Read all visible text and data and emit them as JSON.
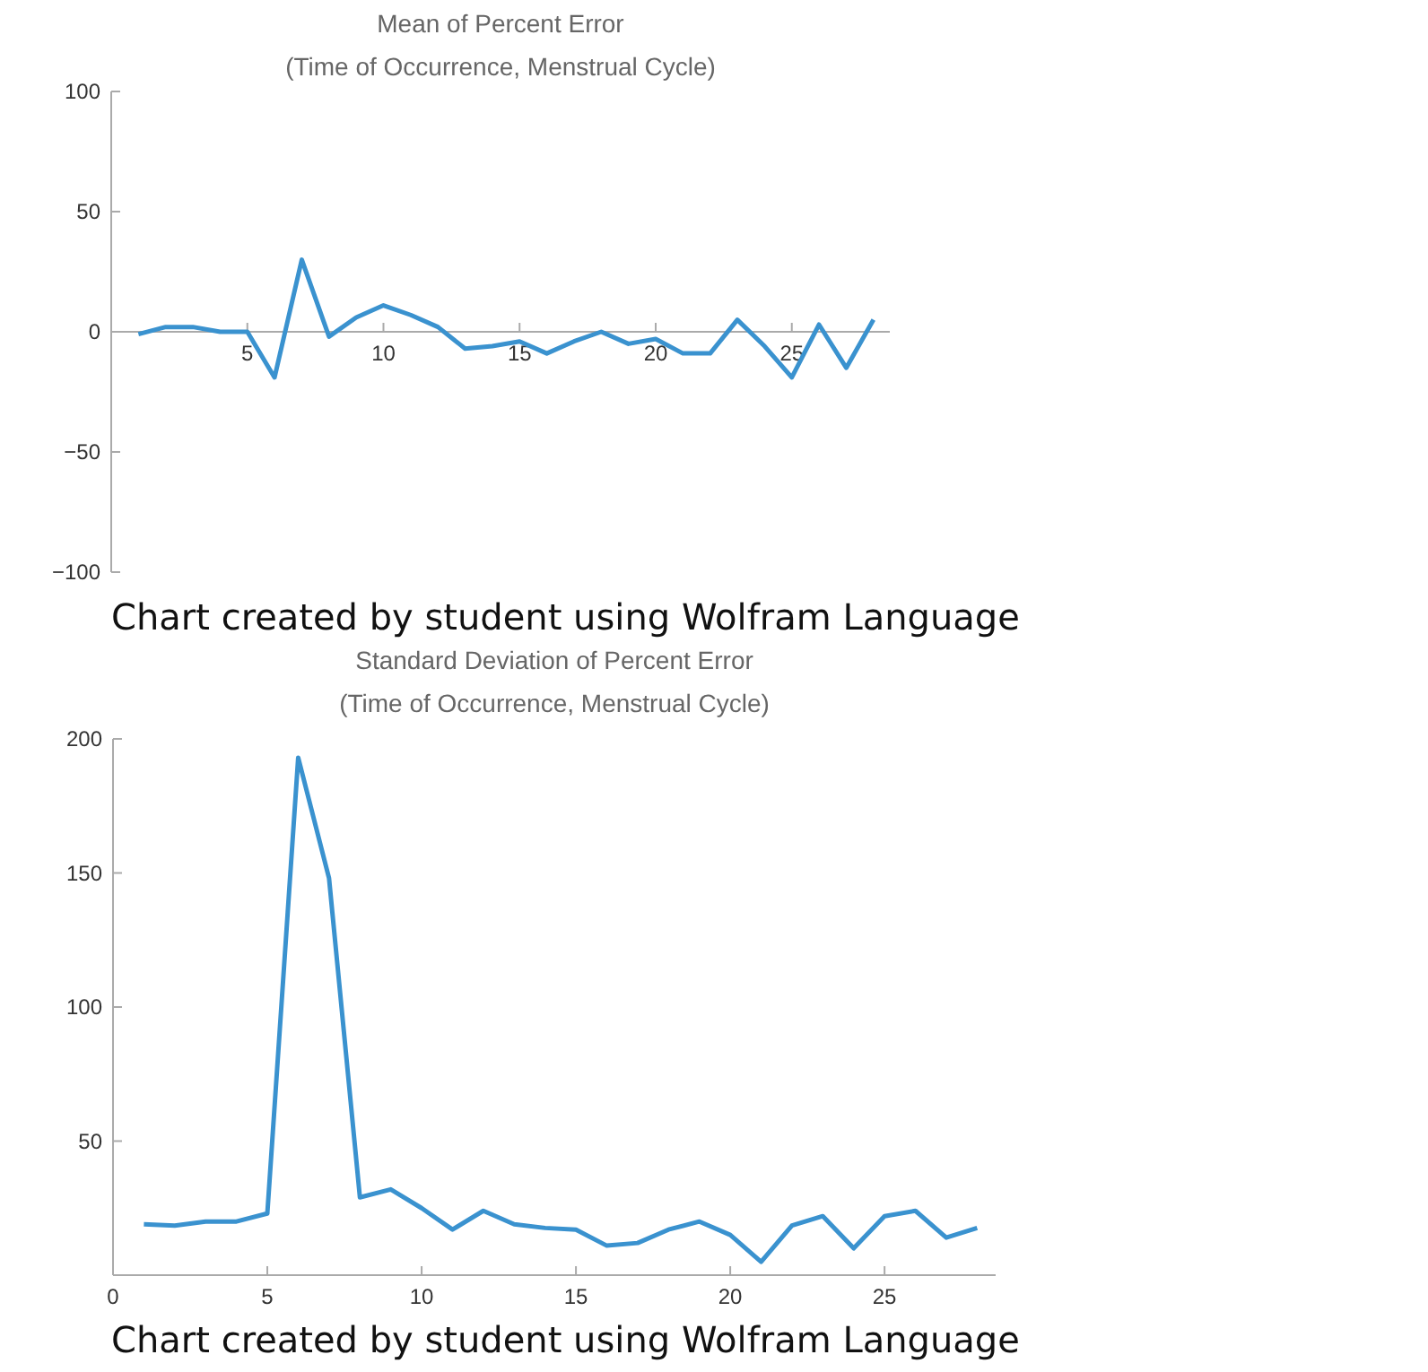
{
  "chart_data": [
    {
      "type": "line",
      "title": "Mean of Percent Error",
      "subtitle": "(Time of Occurrence, Menstrual Cycle)",
      "annotations": [
        "Chart created by student using Wolfram Language"
      ],
      "x": [
        1,
        2,
        3,
        4,
        5,
        6,
        7,
        8,
        9,
        10,
        11,
        12,
        13,
        14,
        15,
        16,
        17,
        18,
        19,
        20,
        21,
        22,
        23,
        24,
        25,
        26,
        27,
        28
      ],
      "series": [
        {
          "color": "#3a92cf",
          "values": [
            -1,
            2,
            2,
            0,
            0,
            -19,
            30,
            -2,
            6,
            11,
            7,
            2,
            -7,
            -6,
            -4,
            -9,
            -4,
            0,
            -5,
            -3,
            -9,
            -9,
            5,
            -6,
            -19,
            3,
            -15,
            5
          ]
        }
      ],
      "xlim": [
        0,
        28.6
      ],
      "xticks": [
        5,
        10,
        15,
        20,
        25
      ],
      "ylim": [
        -100,
        100
      ],
      "yticks": [
        -100,
        -50,
        0,
        50,
        100
      ],
      "grid": false,
      "marker": "none",
      "line_style": "solid"
    },
    {
      "type": "line",
      "title": "Standard Deviation of Percent Error",
      "subtitle": "(Time of Occurrence, Menstrual Cycle)",
      "annotations": [
        "Chart created by student using Wolfram Language"
      ],
      "x": [
        1,
        2,
        3,
        4,
        5,
        6,
        7,
        8,
        9,
        10,
        11,
        12,
        13,
        14,
        15,
        16,
        17,
        18,
        19,
        20,
        21,
        22,
        23,
        24,
        25,
        26,
        27,
        28
      ],
      "series": [
        {
          "color": "#3a92cf",
          "values": [
            19,
            18.5,
            20,
            20,
            23,
            193,
            148,
            29,
            32,
            25,
            17,
            24,
            19,
            17.6,
            17,
            11,
            12,
            17,
            20,
            15,
            5,
            18.5,
            22,
            10,
            22,
            24,
            14,
            17.6
          ]
        }
      ],
      "xlim": [
        0,
        28.6
      ],
      "xticks": [
        0,
        5,
        10,
        15,
        20,
        25
      ],
      "ylim": [
        0,
        200
      ],
      "yticks": [
        50,
        100,
        150,
        200
      ],
      "grid": false,
      "marker": "none",
      "line_style": "solid"
    }
  ]
}
